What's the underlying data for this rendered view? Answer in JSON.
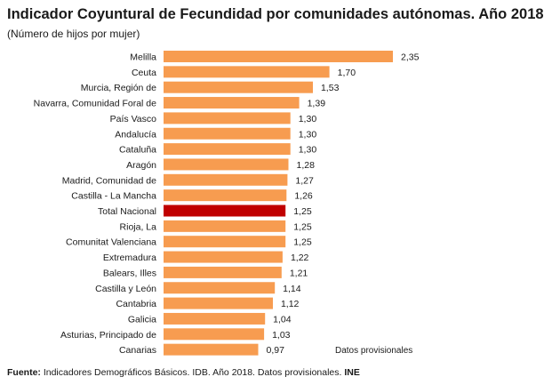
{
  "title": "Indicador Coyuntural de Fecundidad por comunidades autónomas. Año 2018",
  "subtitle": "(Número de hijos por mujer)",
  "note": "Datos provisionales",
  "footer": {
    "label": "Fuente:",
    "text": " Indicadores Demográficos Básicos. IDB. Año 2018. Datos provisionales. ",
    "brand": "INE"
  },
  "colors": {
    "bar": "#f79c50",
    "highlight": "#c00000"
  },
  "chart_data": {
    "type": "bar",
    "orientation": "horizontal",
    "title": "Indicador Coyuntural de Fecundidad por comunidades autónomas. Año 2018",
    "subtitle": "(Número de hijos por mujer)",
    "categories": [
      "Melilla",
      "Ceuta",
      "Murcia, Región de",
      "Navarra, Comunidad Foral de",
      "País Vasco",
      "Andalucía",
      "Cataluña",
      "Aragón",
      "Madrid, Comunidad de",
      "Castilla - La Mancha",
      "Total Nacional",
      "Rioja, La",
      "Comunitat Valenciana",
      "Extremadura",
      "Balears, Illes",
      "Castilla y León",
      "Cantabria",
      "Galicia",
      "Asturias, Principado de",
      "Canarias"
    ],
    "values": [
      2.35,
      1.7,
      1.53,
      1.39,
      1.3,
      1.3,
      1.3,
      1.28,
      1.27,
      1.26,
      1.25,
      1.25,
      1.25,
      1.22,
      1.21,
      1.14,
      1.12,
      1.04,
      1.03,
      0.97
    ],
    "value_labels": [
      "2,35",
      "1,70",
      "1,53",
      "1,39",
      "1,30",
      "1,30",
      "1,30",
      "1,28",
      "1,27",
      "1,26",
      "1,25",
      "1,25",
      "1,25",
      "1,22",
      "1,21",
      "1,14",
      "1,12",
      "1,04",
      "1,03",
      "0,97"
    ],
    "highlight": "Total Nacional",
    "xlim": [
      0,
      2.35
    ],
    "grid": false,
    "legend": "none"
  }
}
